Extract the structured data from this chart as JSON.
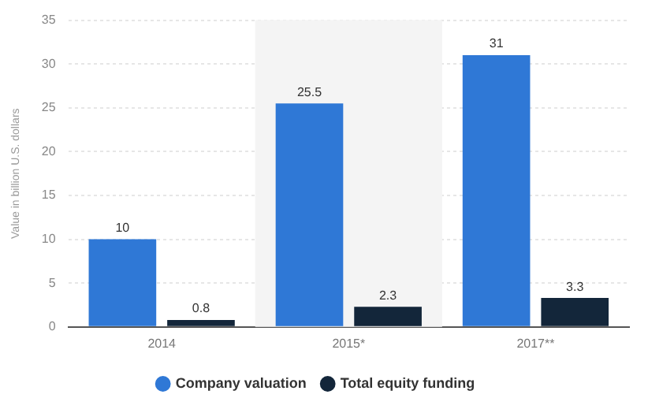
{
  "chart_data": {
    "type": "bar",
    "ylabel": "Value in billion U.S. dollars",
    "categories": [
      "2014",
      "2015*",
      "2017**"
    ],
    "series": [
      {
        "name": "Company valuation",
        "color": "#2f78d6",
        "values": [
          10,
          25.5,
          31
        ]
      },
      {
        "name": "Total equity funding",
        "color": "#13263a",
        "values": [
          0.8,
          2.3,
          3.3
        ]
      }
    ],
    "ylim": [
      0,
      35
    ],
    "yticks": [
      0,
      5,
      10,
      15,
      20,
      25,
      30,
      35
    ],
    "grid": "y",
    "legend": "bottom",
    "data_labels": true,
    "bands": [
      {
        "axis": "x",
        "from": "2015*",
        "to": "2015*",
        "color": "#f4f4f4"
      }
    ]
  }
}
